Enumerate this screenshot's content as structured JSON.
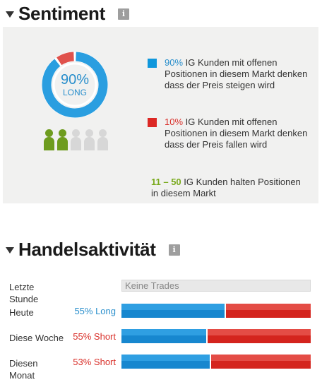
{
  "sentiment": {
    "title": "Sentiment",
    "info_icon": "i",
    "donut": {
      "long_percent": 90,
      "short_percent": 10,
      "value_label": "90%",
      "side_label": "LONG",
      "long_color": "#2a9ee0",
      "short_color": "#e0524c"
    },
    "people": {
      "total": 5,
      "highlighted": 2,
      "highlight_color": "#6e9c1e",
      "inactive_color": "#d7d7d7"
    },
    "legend_long": {
      "percent": "90%",
      "text": " IG Kunden mit offenen Positionen in diesem Markt denken dass der Preis steigen wird"
    },
    "legend_short": {
      "percent": "10%",
      "text": " IG Kunden mit offenen Positionen in diesem Markt denken dass der Preis fallen wird"
    },
    "clients": {
      "range": "11 – 50",
      "text": " IG Kunden halten Positionen in diesem Markt"
    }
  },
  "activity": {
    "title": "Handelsaktivität",
    "info_icon": "i",
    "rows": [
      {
        "label": "Letzte Stunde",
        "value": "",
        "placeholder": "Keine Trades"
      },
      {
        "label": "Heute",
        "value": "55% Long",
        "long_fraction": 0.55
      },
      {
        "label": "Diese Woche",
        "value": "55% Short",
        "long_fraction": 0.45
      },
      {
        "label": "Diesen Monat",
        "value": "53% Short",
        "long_fraction": 0.47
      }
    ]
  }
}
